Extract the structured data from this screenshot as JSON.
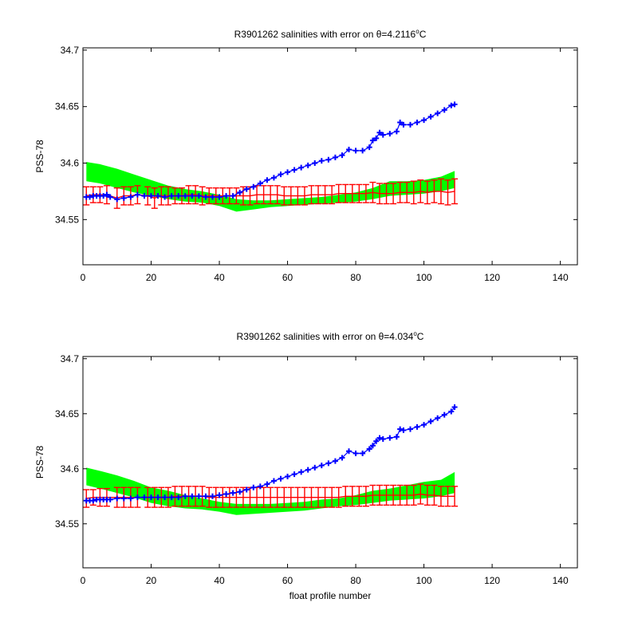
{
  "chart_data": [
    {
      "type": "line",
      "title": "R3901262 salinities with error on θ=4.2116°C",
      "title_main": "R3901262 salinities with error on θ=4.2116",
      "title_sup": "o",
      "title_unit": "C",
      "xlabel": "",
      "ylabel": "PSS-78",
      "xlim": [
        0,
        145
      ],
      "ylim": [
        34.51,
        34.702
      ],
      "xticks": [
        0,
        20,
        40,
        60,
        80,
        100,
        120,
        140
      ],
      "yticks": [
        34.55,
        34.6,
        34.65,
        34.7
      ],
      "ytick_labels": [
        "34.55",
        "34.6",
        "34.65",
        "34.7"
      ],
      "grid": false,
      "series": [
        {
          "kind": "band",
          "color": "#00ff00",
          "x": [
            1,
            5,
            10,
            15,
            20,
            25,
            30,
            35,
            40,
            45,
            50,
            55,
            60,
            65,
            70,
            75,
            80,
            85,
            90,
            95,
            100,
            105,
            109
          ],
          "upper": [
            34.601,
            34.599,
            34.595,
            34.59,
            34.585,
            34.58,
            34.577,
            34.575,
            34.572,
            34.568,
            34.567,
            34.567,
            34.568,
            34.569,
            34.57,
            34.572,
            34.574,
            34.578,
            34.584,
            34.584,
            34.585,
            34.588,
            34.593
          ],
          "lower": [
            34.584,
            34.582,
            34.578,
            34.574,
            34.571,
            34.568,
            34.566,
            34.565,
            34.562,
            34.557,
            34.559,
            34.561,
            34.562,
            34.563,
            34.564,
            34.565,
            34.566,
            34.568,
            34.571,
            34.572,
            34.573,
            34.575,
            34.578
          ]
        },
        {
          "kind": "errorbar",
          "color": "#ff0000",
          "x": [
            1,
            3,
            5,
            7,
            10,
            12,
            14,
            16,
            19,
            21,
            23,
            25,
            27,
            29,
            31,
            33,
            35,
            37,
            39,
            41,
            43,
            45,
            47,
            49,
            51,
            53,
            55,
            57,
            59,
            61,
            63,
            65,
            67,
            69,
            71,
            73,
            75,
            77,
            79,
            81,
            83,
            85,
            87,
            89,
            91,
            93,
            95,
            97,
            99,
            101,
            103,
            105,
            107,
            109
          ],
          "values": [
            34.571,
            34.572,
            34.572,
            34.572,
            34.569,
            34.571,
            34.571,
            34.572,
            34.571,
            34.569,
            34.571,
            34.571,
            34.571,
            34.571,
            34.572,
            34.572,
            34.571,
            34.571,
            34.571,
            34.571,
            34.571,
            34.571,
            34.571,
            34.571,
            34.572,
            34.572,
            34.572,
            34.572,
            34.571,
            34.571,
            34.571,
            34.571,
            34.572,
            34.572,
            34.572,
            34.572,
            34.573,
            34.573,
            34.573,
            34.573,
            34.573,
            34.574,
            34.573,
            34.573,
            34.573,
            34.574,
            34.574,
            34.574,
            34.575,
            34.574,
            34.575,
            34.575,
            34.574,
            34.575
          ],
          "err": [
            0.008,
            0.007,
            0.007,
            0.008,
            0.009,
            0.008,
            0.008,
            0.008,
            0.008,
            0.009,
            0.008,
            0.008,
            0.007,
            0.007,
            0.008,
            0.008,
            0.008,
            0.007,
            0.007,
            0.007,
            0.007,
            0.007,
            0.008,
            0.008,
            0.008,
            0.008,
            0.008,
            0.008,
            0.008,
            0.008,
            0.008,
            0.008,
            0.008,
            0.008,
            0.008,
            0.008,
            0.008,
            0.008,
            0.008,
            0.008,
            0.008,
            0.009,
            0.009,
            0.009,
            0.009,
            0.009,
            0.009,
            0.01,
            0.01,
            0.01,
            0.01,
            0.011,
            0.011,
            0.011
          ]
        },
        {
          "kind": "marker",
          "color": "#0000ff",
          "x": [
            1,
            2,
            3,
            4,
            5,
            6,
            7,
            8,
            10,
            12,
            14,
            16,
            18,
            20,
            22,
            24,
            26,
            28,
            30,
            32,
            34,
            36,
            38,
            40,
            42,
            44,
            46,
            48,
            50,
            52,
            54,
            56,
            58,
            60,
            62,
            64,
            66,
            68,
            70,
            72,
            74,
            76,
            78,
            80,
            82,
            84,
            85,
            86,
            87,
            88,
            90,
            92,
            93,
            94,
            96,
            98,
            100,
            102,
            104,
            106,
            108,
            109
          ],
          "values": [
            34.57,
            34.57,
            34.571,
            34.571,
            34.571,
            34.571,
            34.572,
            34.57,
            34.568,
            34.569,
            34.57,
            34.572,
            34.571,
            34.571,
            34.571,
            34.57,
            34.571,
            34.571,
            34.571,
            34.571,
            34.571,
            34.57,
            34.57,
            34.57,
            34.571,
            34.571,
            34.574,
            34.577,
            34.579,
            34.582,
            34.585,
            34.587,
            34.59,
            34.592,
            34.594,
            34.596,
            34.598,
            34.6,
            34.602,
            34.603,
            34.605,
            34.607,
            34.612,
            34.611,
            34.611,
            34.614,
            34.62,
            34.622,
            34.627,
            34.625,
            34.626,
            34.628,
            34.636,
            34.634,
            34.634,
            34.636,
            34.638,
            34.641,
            34.644,
            34.647,
            34.651,
            34.652
          ]
        }
      ]
    },
    {
      "type": "line",
      "title": "R3901262 salinities with error on θ=4.034°C",
      "title_main": "R3901262 salinities with error on θ=4.034",
      "title_sup": "o",
      "title_unit": "C",
      "xlabel": "float profile number",
      "ylabel": "PSS-78",
      "xlim": [
        0,
        145
      ],
      "ylim": [
        34.51,
        34.702
      ],
      "xticks": [
        0,
        20,
        40,
        60,
        80,
        100,
        120,
        140
      ],
      "yticks": [
        34.55,
        34.6,
        34.65,
        34.7
      ],
      "ytick_labels": [
        "34.55",
        "34.6",
        "34.65",
        "34.7"
      ],
      "grid": false,
      "series": [
        {
          "kind": "band",
          "color": "#00ff00",
          "x": [
            1,
            5,
            10,
            15,
            20,
            25,
            30,
            35,
            40,
            45,
            50,
            55,
            60,
            65,
            70,
            75,
            80,
            85,
            90,
            95,
            100,
            105,
            109
          ],
          "upper": [
            34.601,
            34.598,
            34.594,
            34.589,
            34.583,
            34.58,
            34.576,
            34.573,
            34.57,
            34.568,
            34.568,
            34.568,
            34.569,
            34.57,
            34.572,
            34.573,
            34.576,
            34.58,
            34.582,
            34.585,
            34.588,
            34.59,
            34.597
          ],
          "lower": [
            34.585,
            34.582,
            34.578,
            34.574,
            34.569,
            34.566,
            34.564,
            34.563,
            34.561,
            34.558,
            34.559,
            34.56,
            34.561,
            34.562,
            34.564,
            34.566,
            34.567,
            34.569,
            34.571,
            34.572,
            34.573,
            34.575,
            34.578
          ]
        },
        {
          "kind": "errorbar",
          "color": "#ff0000",
          "x": [
            1,
            3,
            5,
            7,
            10,
            12,
            14,
            16,
            19,
            21,
            23,
            25,
            27,
            29,
            31,
            33,
            35,
            37,
            39,
            41,
            43,
            45,
            47,
            49,
            51,
            53,
            55,
            57,
            59,
            61,
            63,
            65,
            67,
            69,
            71,
            73,
            75,
            77,
            79,
            81,
            83,
            85,
            87,
            89,
            91,
            93,
            95,
            97,
            99,
            101,
            103,
            105,
            107,
            109
          ],
          "values": [
            34.573,
            34.574,
            34.574,
            34.574,
            34.574,
            34.574,
            34.574,
            34.574,
            34.574,
            34.574,
            34.574,
            34.574,
            34.575,
            34.575,
            34.575,
            34.575,
            34.575,
            34.574,
            34.574,
            34.574,
            34.574,
            34.574,
            34.574,
            34.574,
            34.574,
            34.574,
            34.574,
            34.574,
            34.574,
            34.574,
            34.574,
            34.574,
            34.574,
            34.574,
            34.574,
            34.574,
            34.574,
            34.575,
            34.575,
            34.575,
            34.575,
            34.576,
            34.576,
            34.576,
            34.576,
            34.576,
            34.576,
            34.576,
            34.577,
            34.576,
            34.576,
            34.575,
            34.575,
            34.575
          ],
          "err": [
            0.008,
            0.007,
            0.008,
            0.008,
            0.009,
            0.009,
            0.009,
            0.009,
            0.009,
            0.009,
            0.009,
            0.009,
            0.009,
            0.009,
            0.009,
            0.009,
            0.009,
            0.009,
            0.009,
            0.009,
            0.009,
            0.009,
            0.009,
            0.009,
            0.009,
            0.009,
            0.009,
            0.009,
            0.009,
            0.009,
            0.009,
            0.009,
            0.009,
            0.009,
            0.009,
            0.009,
            0.009,
            0.009,
            0.009,
            0.009,
            0.009,
            0.009,
            0.009,
            0.009,
            0.009,
            0.009,
            0.009,
            0.009,
            0.009,
            0.009,
            0.009,
            0.009,
            0.009,
            0.009
          ]
        },
        {
          "kind": "marker",
          "color": "#0000ff",
          "x": [
            1,
            2,
            3,
            4,
            5,
            6,
            7,
            8,
            10,
            12,
            14,
            16,
            18,
            20,
            22,
            24,
            26,
            28,
            30,
            32,
            34,
            36,
            38,
            40,
            42,
            44,
            46,
            48,
            50,
            52,
            54,
            56,
            58,
            60,
            62,
            64,
            66,
            68,
            70,
            72,
            74,
            76,
            78,
            80,
            82,
            84,
            85,
            86,
            87,
            88,
            90,
            92,
            93,
            94,
            96,
            98,
            100,
            102,
            104,
            106,
            108,
            109
          ],
          "values": [
            34.571,
            34.571,
            34.571,
            34.572,
            34.572,
            34.572,
            34.572,
            34.572,
            34.573,
            34.573,
            34.573,
            34.574,
            34.574,
            34.574,
            34.574,
            34.574,
            34.574,
            34.574,
            34.575,
            34.575,
            34.575,
            34.575,
            34.575,
            34.576,
            34.577,
            34.578,
            34.579,
            34.581,
            34.583,
            34.584,
            34.586,
            34.589,
            34.591,
            34.593,
            34.595,
            34.597,
            34.599,
            34.601,
            34.603,
            34.605,
            34.607,
            34.61,
            34.616,
            34.614,
            34.614,
            34.618,
            34.621,
            34.625,
            34.628,
            34.627,
            34.628,
            34.629,
            34.636,
            34.635,
            34.636,
            34.638,
            34.64,
            34.643,
            34.646,
            34.649,
            34.652,
            34.656
          ]
        }
      ]
    }
  ]
}
